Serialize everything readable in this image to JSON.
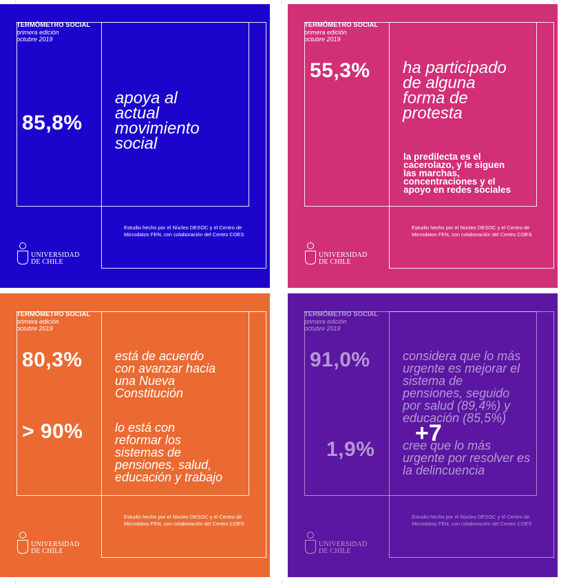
{
  "colors": {
    "blue": "#1d04cc",
    "pink": "#d12f76",
    "orange": "#ea6a32",
    "purple": "#5b17a1"
  },
  "cards": [
    {
      "header": {
        "brand": "TERMÓMETRO SOCIAL",
        "edition": "primera edición",
        "date": "octubre 2019"
      },
      "stat": "85,8%",
      "phrase_lines": [
        "apoya al",
        "actual",
        "movimiento",
        "social"
      ],
      "credit": [
        "Estudio hecho por el Núcleo DESOC y el Centro de",
        "Microdatos FEN, con colaboración del Centro COES"
      ],
      "logo": [
        "UNIVERSIDAD",
        "DE CHILE"
      ]
    },
    {
      "header": {
        "brand": "TERMÓMETRO SOCIAL",
        "edition": "primera edición",
        "date": "octubre 2019"
      },
      "stat": "55,3%",
      "phrase_lines": [
        "ha participado",
        "de alguna",
        "forma de",
        "protesta"
      ],
      "sub_lines": [
        "la predilecta es el",
        "cacerolazo, y le siguen",
        "las marchas,",
        "concentraciones y el",
        "apoyo en redes sociales"
      ],
      "credit": [
        "Estudio hecho por el Núcleo DESOC y el Centro de",
        "Microdatos FEN, con colaboración del Centro COES"
      ],
      "logo": [
        "UNIVERSIDAD",
        "DE CHILE"
      ]
    },
    {
      "header": {
        "brand": "TERMÓMETRO SOCIAL",
        "edition": "primera edición",
        "date": "octubre 2019"
      },
      "stat": "80,3%",
      "phrase_lines": [
        "está de acuerdo",
        "con avanzar hacia",
        "una Nueva",
        "Constitución"
      ],
      "stat2": "> 90%",
      "phrase2_lines": [
        "lo está con",
        "reformar los",
        "sistemas de",
        "pensiones, salud,",
        "educación y trabajo"
      ],
      "credit": [
        "Estudio hecho por el Núcleo DESOC y el Centro de",
        "Microdatos FEN, con colaboración del Centro COES"
      ],
      "logo": [
        "UNIVERSIDAD",
        "DE CHILE"
      ]
    },
    {
      "header": {
        "brand": "TERMÓMETRO SOCIAL",
        "edition": "primera edición",
        "date": "octubre 2019"
      },
      "stat": "91,0%",
      "phrase_lines": [
        "considera que lo más",
        "urgente es mejorar el",
        "sistema de",
        "pensiones, seguido",
        "por salud (89,4%) y",
        "educación (85,5%)"
      ],
      "stat2": "1,9%",
      "phrase2_lines": [
        "cree que lo más",
        "urgente por resolver es",
        "la delincuencia"
      ],
      "credit": [
        "Estudio hecho por el Núcleo DESOC y el Centro de",
        "Microdatos FEN, con colaboración del Centro COES"
      ],
      "logo": [
        "UNIVERSIDAD",
        "DE CHILE"
      ]
    }
  ],
  "more_count": "+7"
}
